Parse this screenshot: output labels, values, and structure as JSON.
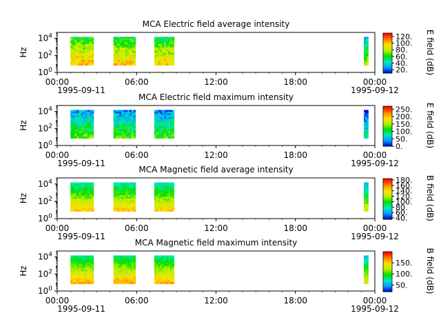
{
  "colors": {
    "background": "#ffffff",
    "axes": "#000000",
    "colormap": [
      "#0000d8",
      "#00a0ff",
      "#00e8c0",
      "#00e000",
      "#b8f000",
      "#ffe000",
      "#ff8000",
      "#ff0000"
    ]
  },
  "chart_data": [
    {
      "type": "heatmap",
      "title": "MCA  Electric field average intensity",
      "ylabel": "Hz",
      "yscale": "log",
      "ylim": [
        1,
        50000
      ],
      "yticks": [
        "10^0",
        "10^2",
        "10^4"
      ],
      "xlim": [
        "1995-09-11 00:00",
        "1995-09-12 00:00"
      ],
      "xticks": [
        "00:00",
        "06:00",
        "12:00",
        "18:00",
        "00:00"
      ],
      "xtick_dates": [
        "1995-09-11",
        "1995-09-12"
      ],
      "colorbar": {
        "label": "E field (dB)",
        "range": [
          10,
          130
        ],
        "ticks": [
          "20.",
          "40.",
          "60.",
          "80.",
          "100.",
          "120."
        ]
      },
      "data_segments": [
        {
          "start": "1995-09-11 01:00",
          "end": "1995-09-11 02:45",
          "mean_level": 0.6
        },
        {
          "start": "1995-09-11 04:15",
          "end": "1995-09-11 05:55",
          "mean_level": 0.58
        },
        {
          "start": "1995-09-11 07:20",
          "end": "1995-09-11 08:50",
          "mean_level": 0.55
        },
        {
          "start": "1995-09-11 23:10",
          "end": "1995-09-11 23:30",
          "mean_level": 0.4
        }
      ]
    },
    {
      "type": "heatmap",
      "title": "MCA  Electric field maximum intensity",
      "ylabel": "Hz",
      "yscale": "log",
      "ylim": [
        1,
        50000
      ],
      "yticks": [
        "10^0",
        "10^2",
        "10^4"
      ],
      "xlim": [
        "1995-09-11 00:00",
        "1995-09-12 00:00"
      ],
      "xticks": [
        "00:00",
        "06:00",
        "12:00",
        "18:00",
        "00:00"
      ],
      "xtick_dates": [
        "1995-09-11",
        "1995-09-12"
      ],
      "colorbar": {
        "label": "E field (dB)",
        "range": [
          0,
          270
        ],
        "ticks": [
          "0.",
          "50.",
          "100.",
          "150.",
          "200.",
          "250."
        ]
      },
      "data_segments": [
        {
          "start": "1995-09-11 01:00",
          "end": "1995-09-11 02:45",
          "mean_level": 0.33
        },
        {
          "start": "1995-09-11 04:15",
          "end": "1995-09-11 05:55",
          "mean_level": 0.32
        },
        {
          "start": "1995-09-11 07:20",
          "end": "1995-09-11 08:50",
          "mean_level": 0.3
        },
        {
          "start": "1995-09-11 23:10",
          "end": "1995-09-11 23:30",
          "mean_level": 0.18
        }
      ]
    },
    {
      "type": "heatmap",
      "title": "MCA  Magnetic field average intensity",
      "ylabel": "Hz",
      "yscale": "log",
      "ylim": [
        1,
        50000
      ],
      "yticks": [
        "10^0",
        "10^2",
        "10^4"
      ],
      "xlim": [
        "1995-09-11 00:00",
        "1995-09-12 00:00"
      ],
      "xticks": [
        "00:00",
        "06:00",
        "12:00",
        "18:00",
        "00:00"
      ],
      "xtick_dates": [
        "1995-09-11",
        "1995-09-12"
      ],
      "colorbar": {
        "label": "B field (dB)",
        "range": [
          35,
          185
        ],
        "ticks": [
          "40.",
          "60.",
          "80.",
          "100.",
          "120.",
          "140.",
          "160.",
          "180."
        ]
      },
      "data_segments": [
        {
          "start": "1995-09-11 01:00",
          "end": "1995-09-11 02:45",
          "mean_level": 0.45
        },
        {
          "start": "1995-09-11 04:15",
          "end": "1995-09-11 05:55",
          "mean_level": 0.45
        },
        {
          "start": "1995-09-11 07:20",
          "end": "1995-09-11 08:50",
          "mean_level": 0.44
        },
        {
          "start": "1995-09-11 23:10",
          "end": "1995-09-11 23:30",
          "mean_level": 0.35
        }
      ]
    },
    {
      "type": "heatmap",
      "title": "MCA  Magnetic field maximum intensity",
      "ylabel": "Hz",
      "yscale": "log",
      "ylim": [
        1,
        50000
      ],
      "yticks": [
        "10^0",
        "10^2",
        "10^4"
      ],
      "xlim": [
        "1995-09-11 00:00",
        "1995-09-12 00:00"
      ],
      "xticks": [
        "00:00",
        "06:00",
        "12:00",
        "18:00",
        "00:00"
      ],
      "xtick_dates": [
        "1995-09-11",
        "1995-09-12"
      ],
      "colorbar": {
        "label": "B field (dB)",
        "range": [
          20,
          200
        ],
        "ticks": [
          "50.",
          "100.",
          "150."
        ]
      },
      "data_segments": [
        {
          "start": "1995-09-11 01:00",
          "end": "1995-09-11 02:45",
          "mean_level": 0.5
        },
        {
          "start": "1995-09-11 04:15",
          "end": "1995-09-11 05:55",
          "mean_level": 0.5
        },
        {
          "start": "1995-09-11 07:20",
          "end": "1995-09-11 08:50",
          "mean_level": 0.48
        },
        {
          "start": "1995-09-11 23:10",
          "end": "1995-09-11 23:30",
          "mean_level": 0.38
        }
      ]
    }
  ]
}
